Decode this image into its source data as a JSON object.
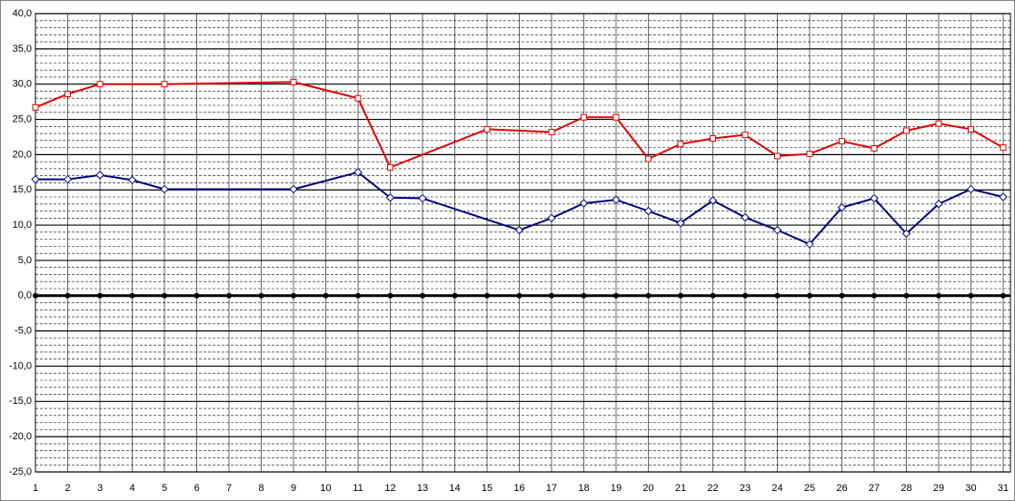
{
  "chart_data": {
    "type": "line",
    "xlim": [
      1,
      31
    ],
    "xticks": [
      1,
      2,
      3,
      4,
      5,
      6,
      7,
      8,
      9,
      10,
      11,
      12,
      13,
      14,
      15,
      16,
      17,
      18,
      19,
      20,
      21,
      22,
      23,
      24,
      25,
      26,
      27,
      28,
      29,
      30,
      31
    ],
    "ylim": [
      -25,
      40
    ],
    "yticks": [
      {
        "value": -25,
        "label": "-25,0"
      },
      {
        "value": -20,
        "label": "-20,0"
      },
      {
        "value": -15,
        "label": "-15,0"
      },
      {
        "value": -10,
        "label": "-10,0"
      },
      {
        "value": -5,
        "label": "-5,0"
      },
      {
        "value": 0,
        "label": "0,0"
      },
      {
        "value": 5,
        "label": "5,0"
      },
      {
        "value": 10,
        "label": "10,0"
      },
      {
        "value": 15,
        "label": "15,0"
      },
      {
        "value": 20,
        "label": "20,0"
      },
      {
        "value": 25,
        "label": "25,0"
      },
      {
        "value": 30,
        "label": "30,0"
      },
      {
        "value": 35,
        "label": "35,0"
      },
      {
        "value": 40,
        "label": "40,0"
      }
    ],
    "grid": true,
    "minor_grid_step": 1,
    "series": [
      {
        "color": "#e00000",
        "marker": "square",
        "x": [
          1,
          2,
          3,
          5,
          9,
          11,
          12,
          15,
          17,
          18,
          19,
          20,
          21,
          22,
          23,
          24,
          25,
          26,
          27,
          28,
          29,
          30,
          31
        ],
        "values": [
          26.7,
          28.6,
          30.0,
          30.0,
          30.3,
          28.0,
          18.2,
          23.6,
          23.2,
          25.3,
          25.3,
          19.4,
          21.5,
          22.3,
          22.8,
          19.8,
          20.1,
          21.9,
          20.9,
          23.4,
          24.4,
          23.6,
          21.0
        ]
      },
      {
        "color": "#000080",
        "marker": "diamond",
        "x": [
          1,
          2,
          3,
          4,
          5,
          9,
          11,
          12,
          13,
          16,
          17,
          18,
          19,
          20,
          21,
          22,
          23,
          24,
          25,
          26,
          27,
          28,
          29,
          30,
          31
        ],
        "values": [
          16.5,
          16.5,
          17.1,
          16.4,
          15.1,
          15.1,
          17.5,
          13.9,
          13.8,
          9.3,
          11.0,
          13.1,
          13.6,
          12.0,
          10.3,
          13.5,
          11.1,
          9.3,
          7.3,
          12.5,
          13.8,
          8.8,
          13.0,
          15.1,
          14.0
        ]
      },
      {
        "color": "#000000",
        "marker": "circle",
        "x": [
          1,
          2,
          3,
          4,
          5,
          6,
          7,
          8,
          9,
          10,
          11,
          12,
          13,
          14,
          15,
          16,
          17,
          18,
          19,
          20,
          21,
          22,
          23,
          24,
          25,
          26,
          27,
          28,
          29,
          30,
          31
        ],
        "values": [
          0,
          0,
          0,
          0,
          0,
          0,
          0,
          0,
          0,
          0,
          0,
          0,
          0,
          0,
          0,
          0,
          0,
          0,
          0,
          0,
          0,
          0,
          0,
          0,
          0,
          0,
          0,
          0,
          0,
          0,
          0
        ]
      }
    ]
  }
}
